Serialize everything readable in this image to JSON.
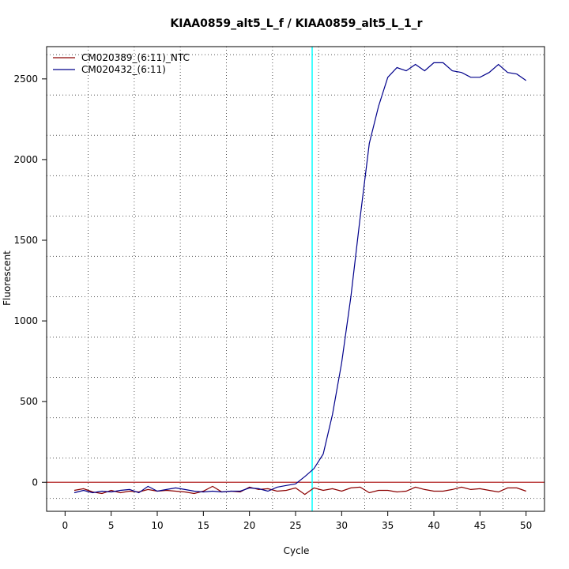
{
  "chart_data": {
    "type": "line",
    "title": "KIAA0859_alt5_L_f / KIAA0859_alt5_L_1_r",
    "xlabel": "Cycle",
    "ylabel": "Fluorescent",
    "xlim": [
      -2,
      52
    ],
    "ylim": [
      -180,
      2700
    ],
    "xticks": [
      0,
      5,
      10,
      15,
      20,
      25,
      30,
      35,
      40,
      45,
      50
    ],
    "yticks": [
      0,
      500,
      1000,
      1500,
      2000,
      2500
    ],
    "grid": "dotted",
    "legend_position": "top-left",
    "threshold_x": 26.8,
    "threshold_x_color": "#00ffff",
    "baseline_y": 0,
    "baseline_color": "#b22222",
    "x": [
      1,
      2,
      3,
      4,
      5,
      6,
      7,
      8,
      9,
      10,
      11,
      12,
      13,
      14,
      15,
      16,
      17,
      18,
      19,
      20,
      21,
      22,
      23,
      24,
      25,
      26,
      27,
      28,
      29,
      30,
      31,
      32,
      33,
      34,
      35,
      36,
      37,
      38,
      39,
      40,
      41,
      42,
      43,
      44,
      45,
      46,
      47,
      48,
      49,
      50
    ],
    "series": [
      {
        "name": "CM020389_(6:11)_NTC",
        "color": "#8b0000",
        "values": [
          -50,
          -40,
          -60,
          -70,
          -50,
          -65,
          -55,
          -60,
          -45,
          -55,
          -50,
          -55,
          -60,
          -70,
          -55,
          -25,
          -60,
          -55,
          -60,
          -30,
          -45,
          -40,
          -55,
          -50,
          -35,
          -75,
          -35,
          -50,
          -40,
          -55,
          -35,
          -30,
          -65,
          -50,
          -50,
          -60,
          -55,
          -30,
          -45,
          -55,
          -55,
          -45,
          -30,
          -45,
          -40,
          -50,
          -60,
          -35,
          -35,
          -55
        ]
      },
      {
        "name": "CM020432_(6:11)",
        "color": "#00008b",
        "values": [
          -65,
          -50,
          -65,
          -55,
          -60,
          -50,
          -45,
          -65,
          -25,
          -55,
          -45,
          -35,
          -45,
          -55,
          -60,
          -55,
          -60,
          -55,
          -55,
          -35,
          -40,
          -55,
          -30,
          -20,
          -10,
          35,
          85,
          175,
          420,
          740,
          1150,
          1640,
          2100,
          2330,
          2510,
          2570,
          2550,
          2590,
          2550,
          2600,
          2600,
          2550,
          2540,
          2510,
          2510,
          2540,
          2590,
          2540,
          2530,
          2490
        ]
      }
    ]
  }
}
